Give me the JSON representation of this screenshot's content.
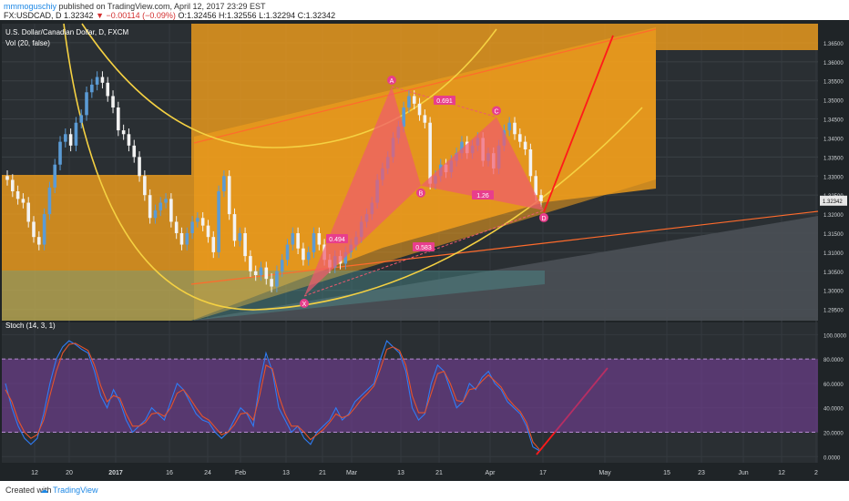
{
  "header": {
    "author": "mmmoguschiy",
    "published": "published on TradingView.com, April 12, 2017 23:29 EST",
    "symbol": "FX:USDCAD, D",
    "last": "1.32342",
    "change_arrow": "▼",
    "change": "−0.00114 (−0.09%)",
    "open": "O:1.32456",
    "high": "H:1.32556",
    "low": "L:1.32294",
    "close": "C:1.32342"
  },
  "main_pane": {
    "title": "U.S. Dollar/Canadian Dollar, D, FXCM",
    "volume_label": "Vol (20, false)",
    "price_tag": "1.32342"
  },
  "stoch_pane": {
    "label": "Stoch (14, 3, 1)"
  },
  "footer": {
    "created_with": "Created with",
    "brand": "TradingView"
  },
  "colors": {
    "background": "#1f2427",
    "orange_channel": "#f7a21b",
    "harmonic_fill": "#ef5a6f",
    "bull_candle": "#5b9bd5",
    "bear_candle": "#f3f3f3",
    "stoch_k": "#2e7cf6",
    "stoch_d": "#e5532c",
    "stoch_band": "#7b3fa0",
    "projection_line": "#ff1a1a",
    "curve": "#f5d142"
  },
  "pattern": {
    "points": [
      {
        "label": "X",
        "date": "2017-02-20",
        "price": 1.2985
      },
      {
        "label": "A",
        "date": "2017-03-09",
        "price": 1.3535
      },
      {
        "label": "B",
        "date": "2017-03-14",
        "price": 1.3275
      },
      {
        "label": "C",
        "date": "2017-03-28",
        "price": 1.3455
      },
      {
        "label": "D",
        "date": "2017-04-12",
        "price": 1.321
      }
    ],
    "ratios": [
      "0.494",
      "0.583",
      "0.691",
      "1.26"
    ]
  },
  "chart_data": [
    {
      "type": "candlestick",
      "title": "U.S. Dollar/Canadian Dollar, D, FXCM",
      "xlabel": "",
      "ylabel": "",
      "ylim": [
        1.293,
        1.37
      ],
      "y_ticks": [
        "1.36500",
        "1.36000",
        "1.35500",
        "1.35000",
        "1.34500",
        "1.34000",
        "1.33500",
        "1.33000",
        "1.32500",
        "1.32000",
        "1.31500",
        "1.31000",
        "1.30500",
        "1.30000",
        "1.29500"
      ],
      "x_ticks": [
        "12",
        "20",
        "2017",
        "16",
        "24",
        "Feb",
        "13",
        "21",
        "Mar",
        "13",
        "21",
        "Apr",
        "17",
        "May",
        "15",
        "23",
        "Jun",
        "12",
        "2"
      ],
      "series": [
        {
          "name": "USDCAD",
          "close_approx": [
            1.329,
            1.326,
            1.324,
            1.323,
            1.318,
            1.314,
            1.312,
            1.32,
            1.327,
            1.333,
            1.339,
            1.341,
            1.338,
            1.344,
            1.346,
            1.352,
            1.354,
            1.356,
            1.3545,
            1.351,
            1.348,
            1.342,
            1.341,
            1.338,
            1.335,
            1.33,
            1.325,
            1.319,
            1.321,
            1.323,
            1.324,
            1.318,
            1.315,
            1.312,
            1.315,
            1.318,
            1.319,
            1.317,
            1.314,
            1.31,
            1.326,
            1.33,
            1.32,
            1.313,
            1.315,
            1.309,
            1.305,
            1.304,
            1.306,
            1.303,
            1.301,
            1.305,
            1.308,
            1.312,
            1.315,
            1.311,
            1.308,
            1.31,
            1.315,
            1.312,
            1.308,
            1.306,
            1.309,
            1.307,
            1.31,
            1.312,
            1.314,
            1.318,
            1.32,
            1.323,
            1.329,
            1.332,
            1.335,
            1.34,
            1.343,
            1.348,
            1.351,
            1.349,
            1.346,
            1.344,
            1.328,
            1.33,
            1.333,
            1.331,
            1.334,
            1.336,
            1.339,
            1.336,
            1.338,
            1.34,
            1.334,
            1.336,
            1.332,
            1.338,
            1.342,
            1.344,
            1.341,
            1.339,
            1.337,
            1.33,
            1.325,
            1.3234
          ]
        }
      ]
    },
    {
      "type": "line",
      "title": "Stoch (14, 3, 1)",
      "xlabel": "",
      "ylabel": "",
      "ylim": [
        -5,
        110
      ],
      "y_ticks": [
        "100.0000",
        "80.0000",
        "60.0000",
        "40.0000",
        "20.0000",
        "0.0000"
      ],
      "bands": [
        20,
        80
      ],
      "series": [
        {
          "name": "%K",
          "values": [
            60,
            40,
            25,
            15,
            10,
            15,
            35,
            60,
            80,
            90,
            95,
            92,
            88,
            85,
            70,
            50,
            40,
            55,
            45,
            30,
            20,
            25,
            30,
            40,
            35,
            30,
            45,
            60,
            55,
            45,
            35,
            30,
            28,
            20,
            15,
            20,
            30,
            40,
            35,
            25,
            60,
            85,
            70,
            40,
            30,
            20,
            25,
            15,
            10,
            20,
            25,
            30,
            40,
            30,
            35,
            45,
            50,
            55,
            60,
            80,
            95,
            90,
            85,
            70,
            40,
            30,
            35,
            60,
            75,
            70,
            55,
            40,
            45,
            60,
            55,
            65,
            70,
            60,
            55,
            45,
            40,
            35,
            25,
            8,
            5
          ]
        },
        {
          "name": "%D",
          "values": [
            55,
            45,
            30,
            20,
            15,
            18,
            30,
            50,
            70,
            85,
            92,
            93,
            90,
            87,
            75,
            58,
            45,
            50,
            48,
            35,
            25,
            25,
            28,
            35,
            36,
            33,
            40,
            52,
            55,
            48,
            40,
            33,
            30,
            24,
            18,
            20,
            26,
            35,
            36,
            30,
            50,
            75,
            72,
            50,
            35,
            25,
            25,
            20,
            14,
            18,
            22,
            28,
            35,
            32,
            34,
            40,
            47,
            52,
            58,
            72,
            88,
            90,
            87,
            75,
            50,
            36,
            36,
            52,
            68,
            70,
            60,
            46,
            45,
            55,
            56,
            62,
            67,
            62,
            57,
            48,
            42,
            37,
            28,
            12,
            6
          ]
        }
      ]
    }
  ]
}
